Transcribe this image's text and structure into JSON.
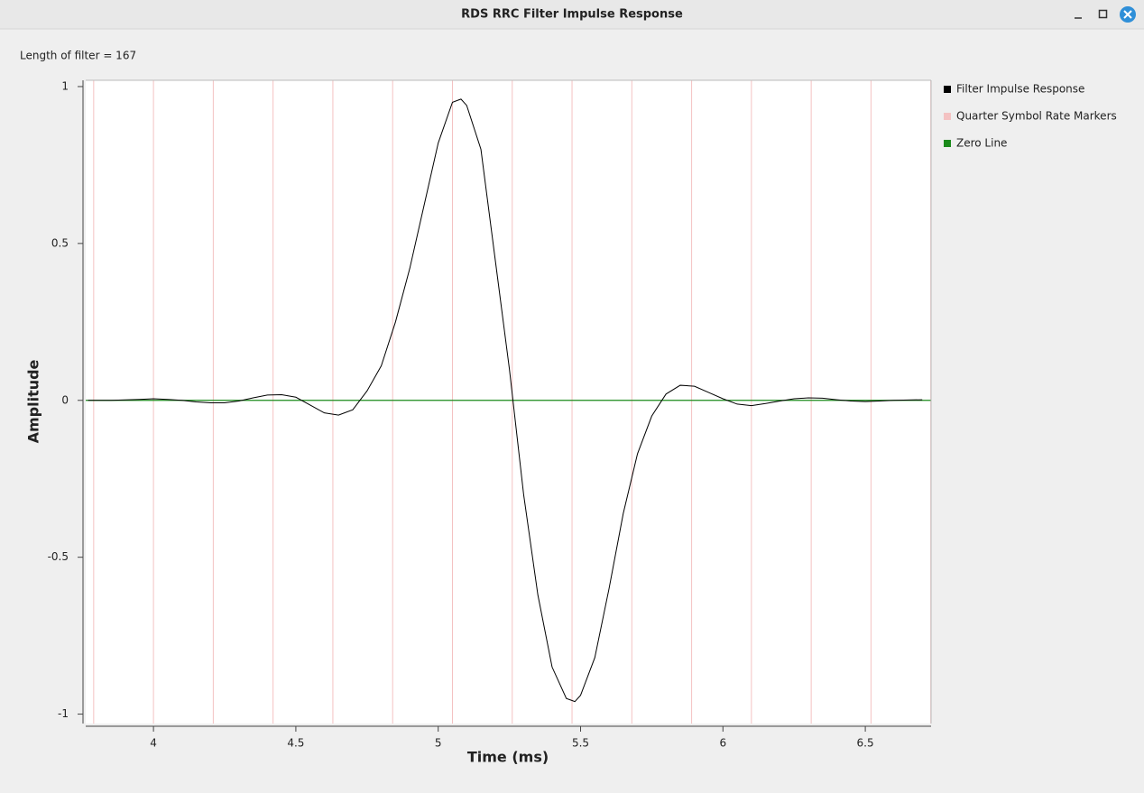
{
  "window": {
    "title": "RDS RRC Filter Impulse Response"
  },
  "header": {
    "text": "Length of filter = 167"
  },
  "chart_data": {
    "type": "line",
    "xlabel": "Time (ms)",
    "ylabel": "Amplitude",
    "xlim": [
      3.762,
      6.731
    ],
    "ylim": [
      -1.03,
      1.02
    ],
    "xticks": [
      4,
      4.5,
      5,
      5.5,
      6,
      6.5
    ],
    "yticks": [
      -1,
      -0.5,
      0,
      0.5,
      1
    ],
    "legend": "right",
    "series": [
      {
        "name": "Filter Impulse Response",
        "color": "#000000",
        "x": [
          3.77,
          3.85,
          3.95,
          4.0,
          4.05,
          4.1,
          4.15,
          4.2,
          4.25,
          4.3,
          4.35,
          4.4,
          4.45,
          4.5,
          4.55,
          4.6,
          4.65,
          4.7,
          4.75,
          4.8,
          4.85,
          4.9,
          4.95,
          5.0,
          5.05,
          5.08,
          5.1,
          5.15,
          5.2,
          5.25,
          5.3,
          5.35,
          5.4,
          5.45,
          5.48,
          5.5,
          5.55,
          5.6,
          5.65,
          5.7,
          5.75,
          5.8,
          5.85,
          5.9,
          5.95,
          6.0,
          6.05,
          6.1,
          6.15,
          6.2,
          6.25,
          6.3,
          6.35,
          6.4,
          6.45,
          6.5,
          6.55,
          6.6,
          6.7
        ],
        "values": [
          0,
          0,
          0.003,
          0.005,
          0.003,
          0,
          -0.005,
          -0.008,
          -0.008,
          -0.002,
          0.008,
          0.017,
          0.018,
          0.01,
          -0.015,
          -0.04,
          -0.047,
          -0.03,
          0.03,
          0.11,
          0.25,
          0.42,
          0.62,
          0.82,
          0.95,
          0.96,
          0.94,
          0.8,
          0.45,
          0.1,
          -0.3,
          -0.62,
          -0.85,
          -0.95,
          -0.96,
          -0.94,
          -0.82,
          -0.6,
          -0.36,
          -0.17,
          -0.05,
          0.02,
          0.048,
          0.045,
          0.025,
          0.005,
          -0.012,
          -0.017,
          -0.01,
          -0.002,
          0.005,
          0.008,
          0.007,
          0.002,
          -0.002,
          -0.004,
          -0.002,
          0,
          0.002
        ]
      },
      {
        "name": "Quarter Symbol Rate Markers",
        "color": "#f4c2c2",
        "x": [
          3.79,
          4.0,
          4.21,
          4.42,
          4.63,
          4.84,
          5.05,
          5.26,
          5.47,
          5.68,
          5.89,
          6.1,
          6.31,
          6.52,
          6.73
        ]
      },
      {
        "name": "Zero Line",
        "color": "#1a8a1a",
        "y": 0
      }
    ]
  }
}
